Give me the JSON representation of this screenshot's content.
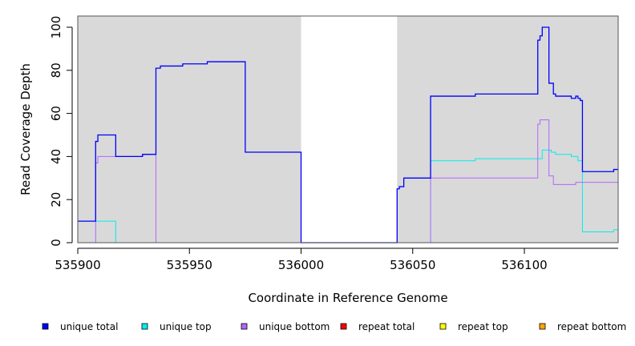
{
  "chart_data": {
    "type": "line",
    "title": "",
    "xlabel": "Coordinate in Reference Genome",
    "ylabel": "Read Coverage Depth",
    "xlim": [
      535900,
      536142
    ],
    "ylim": [
      0,
      105
    ],
    "x_ticks": [
      535900,
      535950,
      536000,
      536050,
      536100
    ],
    "y_ticks": [
      0,
      20,
      40,
      60,
      80,
      100
    ],
    "grid": false,
    "line_style": "step",
    "shaded_regions": [
      {
        "x_start": 535900,
        "x_end": 536000,
        "color": "#d9d9d9"
      },
      {
        "x_start": 536043,
        "x_end": 536142,
        "color": "#d9d9d9"
      }
    ],
    "legend_position": "bottom",
    "series": [
      {
        "name": "unique total",
        "color": "#0000ff",
        "points": [
          [
            535900,
            10
          ],
          [
            535908,
            47
          ],
          [
            535909,
            50
          ],
          [
            535917,
            40
          ],
          [
            535929,
            41
          ],
          [
            535935,
            81
          ],
          [
            535937,
            82
          ],
          [
            535947,
            83
          ],
          [
            535958,
            84
          ],
          [
            535975,
            42
          ],
          [
            536000,
            0
          ],
          [
            536043,
            25
          ],
          [
            536044,
            26
          ],
          [
            536046,
            30
          ],
          [
            536058,
            68
          ],
          [
            536078,
            69
          ],
          [
            536106,
            94
          ],
          [
            536107,
            96
          ],
          [
            536108,
            100
          ],
          [
            536111,
            74
          ],
          [
            536113,
            69
          ],
          [
            536114,
            68
          ],
          [
            536121,
            67
          ],
          [
            536123,
            68
          ],
          [
            536124,
            67
          ],
          [
            536125,
            66
          ],
          [
            536126,
            33
          ],
          [
            536140,
            34
          ],
          [
            536142,
            34
          ]
        ]
      },
      {
        "name": "unique top",
        "color": "#00eeee",
        "points": [
          [
            535900,
            10
          ],
          [
            535917,
            0
          ],
          [
            536058,
            38
          ],
          [
            536078,
            39
          ],
          [
            536108,
            43
          ],
          [
            536112,
            42
          ],
          [
            536114,
            41
          ],
          [
            536121,
            40
          ],
          [
            536124,
            38
          ],
          [
            536126,
            5
          ],
          [
            536140,
            6
          ],
          [
            536142,
            6
          ]
        ]
      },
      {
        "name": "unique bottom",
        "color": "#b266ff",
        "points": [
          [
            535900,
            0
          ],
          [
            535908,
            37
          ],
          [
            535909,
            40
          ],
          [
            535917,
            40
          ],
          [
            535929,
            41
          ],
          [
            535935,
            0
          ],
          [
            536058,
            30
          ],
          [
            536106,
            55
          ],
          [
            536107,
            57
          ],
          [
            536111,
            31
          ],
          [
            536113,
            27
          ],
          [
            536123,
            28
          ],
          [
            536142,
            28
          ]
        ]
      },
      {
        "name": "repeat total",
        "color": "#ff0000",
        "points": [
          [
            535900,
            0
          ],
          [
            536142,
            0
          ]
        ]
      },
      {
        "name": "repeat top",
        "color": "#ffff00",
        "points": [
          [
            535900,
            0
          ],
          [
            536142,
            0
          ]
        ]
      },
      {
        "name": "repeat bottom",
        "color": "#ffa500",
        "points": [
          [
            535900,
            0
          ],
          [
            536142,
            0
          ]
        ]
      }
    ]
  }
}
